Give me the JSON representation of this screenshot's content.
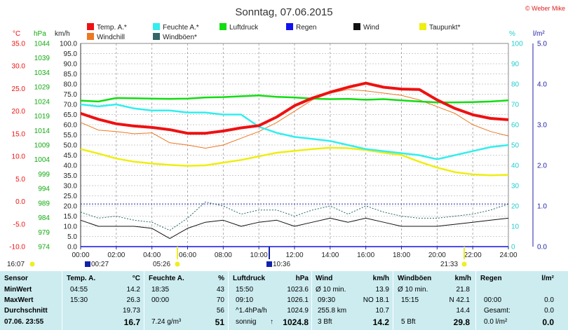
{
  "title": "Sonntag, 07.06.2015",
  "credit": "© Weber Mike",
  "colors": {
    "temp": "#ee1111",
    "windchill": "#ee7722",
    "humidity": "#33eeee",
    "pressure": "#11dd11",
    "rain": "#1111ee",
    "wind": "#111111",
    "dew": "#eeee11",
    "gust": "#226666",
    "axis_c": "#ee1111",
    "axis_hpa": "#11aa11",
    "axis_kmh": "#222222",
    "axis_pct": "#22cccc",
    "axis_lm2": "#2222aa",
    "table_bg": "#ccecf0"
  },
  "legend": [
    {
      "label": "Temp. A.*",
      "color": "#ee1111"
    },
    {
      "label": "Feuchte A.*",
      "color": "#33eeee"
    },
    {
      "label": "Luftdruck",
      "color": "#11dd11"
    },
    {
      "label": "Regen",
      "color": "#1111ee"
    },
    {
      "label": "Wind",
      "color": "#111111"
    },
    {
      "label": "Taupunkt*",
      "color": "#eeee11"
    },
    {
      "label": "Windchill",
      "color": "#ee7722"
    },
    {
      "label": "Windböen*",
      "color": "#336666"
    }
  ],
  "axis_units": {
    "c": "°C",
    "hpa": "hPa",
    "kmh": "km/h",
    "pct": "%",
    "lm2": "l/m²"
  },
  "chart_data": {
    "type": "line",
    "x_ticks": [
      "00:00",
      "02:00",
      "04:00",
      "06:00",
      "08:00",
      "10:00",
      "12:00",
      "14:00",
      "16:00",
      "18:00",
      "20:00",
      "22:00",
      "24:00"
    ],
    "axes": {
      "kmh": {
        "min": 0,
        "max": 100,
        "ticks": [
          "0.0",
          "5.0",
          "10.0",
          "15.0",
          "20.0",
          "25.0",
          "30.0",
          "35.0",
          "40.0",
          "45.0",
          "50.0",
          "55.0",
          "60.0",
          "65.0",
          "70.0",
          "75.0",
          "80.0",
          "85.0",
          "90.0",
          "95.0",
          "100.0"
        ]
      },
      "temp_c": {
        "min": -10,
        "max": 35,
        "ticks": [
          "-10.0",
          "-5.0",
          "0.0",
          "5.0",
          "10.0",
          "15.0",
          "20.0",
          "25.0",
          "30.0",
          "35.0"
        ]
      },
      "pressure_hpa": {
        "min": 974,
        "max": 1044,
        "ticks": [
          "974",
          "979",
          "984",
          "989",
          "994",
          "999",
          "1004",
          "1009",
          "1014",
          "1019",
          "1024",
          "1029",
          "1034",
          "1039",
          "1044"
        ]
      },
      "humidity_pct": {
        "min": 0,
        "max": 100,
        "ticks": [
          "0",
          "10",
          "20",
          "30",
          "40",
          "50",
          "60",
          "70",
          "80",
          "90",
          "100"
        ]
      },
      "rain_lm2": {
        "min": 0,
        "max": 5,
        "ticks": [
          "0.0",
          "1.0",
          "2.0",
          "3.0",
          "4.0",
          "5.0"
        ]
      }
    },
    "series": [
      {
        "name": "Temp. A.*",
        "axis": "temp_c",
        "x": [
          0,
          1,
          2,
          3,
          4,
          5,
          6,
          7,
          8,
          9,
          10,
          11,
          12,
          13,
          14,
          15,
          16,
          17,
          18,
          19,
          20,
          21,
          22,
          23,
          24
        ],
        "values": [
          19.5,
          18.2,
          17.2,
          16.7,
          16.4,
          15.9,
          15.1,
          15.1,
          15.6,
          16.3,
          16.8,
          18.7,
          21.2,
          22.9,
          24.2,
          25.3,
          26.2,
          25.3,
          24.9,
          24.8,
          22.5,
          20.6,
          19.2,
          18.4,
          18.1
        ]
      },
      {
        "name": "Windchill",
        "axis": "temp_c",
        "x": [
          0,
          1,
          2,
          3,
          4,
          5,
          6,
          7,
          8,
          9,
          10,
          11,
          12,
          13,
          14,
          15,
          16,
          17,
          18,
          19,
          20,
          21,
          22,
          23,
          24
        ],
        "values": [
          17.5,
          15.8,
          15.5,
          15.0,
          15.2,
          13.0,
          12.5,
          11.8,
          12.5,
          14.0,
          15.5,
          17.5,
          20.0,
          22.5,
          24.0,
          24.8,
          24.5,
          24.0,
          23.5,
          22.5,
          21.0,
          19.5,
          17.0,
          15.5,
          14.5
        ]
      },
      {
        "name": "Feuchte A.*",
        "axis": "humidity_pct",
        "x": [
          0,
          1,
          2,
          3,
          4,
          5,
          6,
          7,
          8,
          9,
          10,
          11,
          12,
          13,
          14,
          15,
          16,
          17,
          18,
          19,
          20,
          21,
          22,
          23,
          24
        ],
        "values": [
          70,
          69,
          70,
          68,
          67,
          67,
          66,
          66,
          65,
          65,
          59,
          56,
          54,
          53,
          52,
          50,
          48,
          47,
          46,
          45,
          43,
          45,
          47,
          49,
          50
        ]
      },
      {
        "name": "Luftdruck",
        "axis": "pressure_hpa",
        "x": [
          0,
          1,
          2,
          3,
          4,
          5,
          6,
          7,
          8,
          9,
          10,
          11,
          12,
          13,
          14,
          15,
          16,
          17,
          18,
          19,
          20,
          21,
          22,
          23,
          24
        ],
        "values": [
          1024.3,
          1024.0,
          1025.2,
          1025.1,
          1025.0,
          1024.9,
          1025.0,
          1025.4,
          1025.5,
          1025.8,
          1026.1,
          1025.6,
          1025.4,
          1025.0,
          1024.8,
          1024.9,
          1024.6,
          1024.8,
          1024.4,
          1024.0,
          1023.7,
          1023.7,
          1023.8,
          1024.0,
          1024.4
        ]
      },
      {
        "name": "Taupunkt*",
        "axis": "temp_c",
        "x": [
          0,
          1,
          2,
          3,
          4,
          5,
          6,
          7,
          8,
          9,
          10,
          11,
          12,
          13,
          14,
          15,
          16,
          17,
          18,
          19,
          20,
          21,
          22,
          23,
          24
        ],
        "values": [
          11.6,
          10.6,
          9.5,
          8.8,
          8.4,
          8.1,
          7.9,
          8.0,
          8.6,
          9.2,
          10.0,
          10.8,
          11.2,
          11.6,
          11.9,
          11.8,
          11.4,
          10.8,
          10.3,
          8.8,
          7.5,
          6.5,
          6.0,
          5.8,
          5.9
        ]
      },
      {
        "name": "Wind",
        "axis": "kmh",
        "x": [
          0,
          1,
          2,
          3,
          4,
          5,
          6,
          7,
          8,
          9,
          10,
          11,
          12,
          13,
          14,
          15,
          16,
          17,
          18,
          19,
          20,
          21,
          22,
          23,
          24
        ],
        "values": [
          13,
          10,
          10,
          10,
          9,
          4,
          9,
          12,
          13,
          10,
          12,
          13,
          10,
          12,
          14,
          12,
          14,
          12,
          10,
          10,
          10,
          11,
          12,
          13,
          14
        ]
      },
      {
        "name": "Windböen*",
        "axis": "kmh",
        "x": [
          0,
          1,
          2,
          3,
          4,
          5,
          6,
          7,
          8,
          9,
          10,
          11,
          12,
          13,
          14,
          15,
          16,
          17,
          18,
          19,
          20,
          21,
          22,
          23,
          24
        ],
        "values": [
          17,
          14,
          15,
          13,
          12,
          8,
          14,
          22,
          20,
          16,
          18,
          18,
          15,
          18,
          20,
          16,
          20,
          17,
          15,
          14,
          14,
          15,
          16,
          18,
          21
        ]
      },
      {
        "name": "Regen",
        "axis": "rain_lm2",
        "x": [
          0,
          24
        ],
        "values": [
          0,
          0
        ]
      }
    ],
    "reference_line": {
      "axis": "kmh",
      "value": 21,
      "style": "dotted"
    }
  },
  "time_markers": {
    "start": "16:07",
    "sunrise": "05:26",
    "sunset": "21:33",
    "min_temp_time": "00:27",
    "pressure_marker": "10:36"
  },
  "table": {
    "headers": {
      "sensor": "Sensor",
      "temp": "Temp. A.",
      "temp_unit": "°C",
      "hum": "Feuchte A.",
      "hum_unit": "%",
      "press": "Luftdruck",
      "press_unit": "hPa",
      "wind": "Wind",
      "wind_unit": "km/h",
      "gust": "Windböen",
      "gust_unit": "km/h",
      "rain": "Regen",
      "rain_unit": "l/m²"
    },
    "rows": [
      {
        "label": "MinWert",
        "temp_t": "04:55",
        "temp_v": "14.2",
        "hum_t": "18:35",
        "hum_v": "43",
        "press_t": "15:50",
        "press_v": "1023.6",
        "wind_t": "Ø 10 min.",
        "wind_v": "13.9",
        "gust_t": "Ø 10 min.",
        "gust_v": "21.8",
        "rain_t": "",
        "rain_v": ""
      },
      {
        "label": "MaxWert",
        "temp_t": "15:30",
        "temp_v": "26.3",
        "hum_t": "00:00",
        "hum_v": "70",
        "press_t": "09:10",
        "press_v": "1026.1",
        "wind_t": "09:30",
        "wind_m": "NO 18.1",
        "wind_v": "",
        "gust_t": "15:15",
        "gust_m": "N 42.1",
        "gust_v": "",
        "rain_t": "00:00",
        "rain_v": "0.0"
      },
      {
        "label": "Durchschnitt",
        "temp_t": "",
        "temp_v": "19.73",
        "hum_t": "",
        "hum_v": "56",
        "press_t": "^1.4hPa/h",
        "press_v": "1024.9",
        "wind_t": "255.8 km",
        "wind_v": "10.7",
        "gust_t": "",
        "gust_v": "14.4",
        "rain_t": "Gesamt:",
        "rain_v": "0.0"
      },
      {
        "label": "07.06. 23:55",
        "temp_t": "",
        "temp_v": "16.7",
        "hum_t": "7.24 g/m³",
        "hum_v": "51",
        "press_t": "sonnig",
        "press_v": "1024.8",
        "wind_t": "3 Bft",
        "wind_v": "14.2",
        "gust_t": "5 Bft",
        "gust_v": "29.8",
        "rain_t": "0.0 l/m²",
        "rain_v": "0.0"
      }
    ]
  }
}
